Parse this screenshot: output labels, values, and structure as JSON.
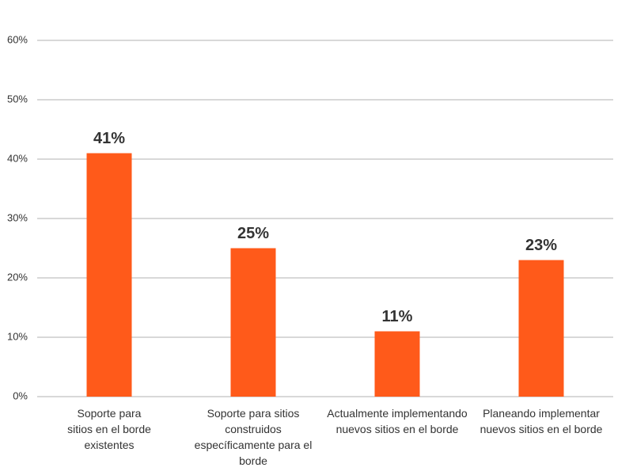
{
  "chart_data": {
    "type": "bar",
    "categories": [
      "Soporte para sitios en el borde existentes",
      "Soporte para sitios construidos específicamente para el borde",
      "Actualmente implementando nuevos sitios en el borde",
      "Planeando implementar nuevos sitios en el borde"
    ],
    "values": [
      41,
      25,
      11,
      23
    ],
    "value_labels": [
      "41%",
      "25%",
      "11%",
      "23%"
    ],
    "color": "#ff5a1a",
    "ylim": [
      0,
      60
    ],
    "yticks": [
      {
        "value": 0,
        "label": "0%"
      },
      {
        "value": 10,
        "label": "10%"
      },
      {
        "value": 20,
        "label": "20%"
      },
      {
        "value": 30,
        "label": "30%"
      },
      {
        "value": 40,
        "label": "40%"
      },
      {
        "value": 50,
        "label": "50%"
      },
      {
        "value": 60,
        "label": "60%"
      }
    ],
    "grid": true
  }
}
